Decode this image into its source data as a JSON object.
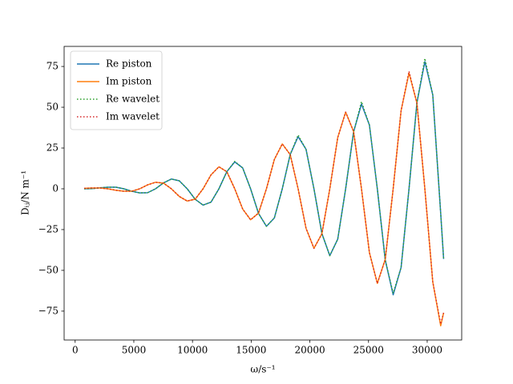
{
  "chart_data": {
    "type": "line",
    "xlabel": "ω/s⁻¹",
    "ylabel": "Dᵢⱼ/N m⁻¹",
    "x": [
      775,
      1450,
      2125,
      2800,
      3475,
      4150,
      4825,
      5500,
      6175,
      6850,
      7525,
      8200,
      8875,
      9550,
      10225,
      10900,
      11575,
      12250,
      12925,
      13600,
      14275,
      14950,
      15625,
      16300,
      16975,
      17650,
      18325,
      19000,
      19675,
      20350,
      21025,
      21700,
      22375,
      23050,
      23725,
      24400,
      25075,
      25750,
      26425,
      27100,
      27775,
      28450,
      29125,
      29800,
      30475,
      31150,
      31400
    ],
    "series": [
      {
        "name": "Re piston",
        "color": "#1f77b4",
        "linestyle": "solid",
        "values": [
          0,
          0.1,
          0.6,
          1,
          1,
          0,
          -1.5,
          -2.5,
          -2.4,
          0,
          3.6,
          6,
          4.9,
          0,
          -6.4,
          -10,
          -8.2,
          0,
          10.5,
          16.5,
          12.8,
          0,
          -15.1,
          -23,
          -17.9,
          0,
          21,
          32,
          24.2,
          0,
          -27.4,
          -41,
          -30.9,
          0,
          34.8,
          52,
          39.1,
          0,
          -43.7,
          -65,
          -48.3,
          0,
          52.8,
          78,
          57.6,
          -15,
          -43
        ]
      },
      {
        "name": "Im piston",
        "color": "#ff7f0e",
        "linestyle": "solid",
        "values": [
          0.3,
          0.5,
          0.5,
          0,
          -0.9,
          -1.5,
          -1.5,
          0,
          2.4,
          4,
          3.5,
          0,
          -4.7,
          -7.5,
          -6.4,
          0,
          8.5,
          13.5,
          10.5,
          0,
          -12.4,
          -19,
          -14.9,
          0,
          18,
          27.5,
          21,
          0,
          -24.2,
          -36.5,
          -27.6,
          0,
          31.4,
          47,
          35.2,
          0,
          -39.1,
          -58,
          -43.3,
          0,
          47.9,
          71,
          52.5,
          0,
          -57.1,
          -84,
          -76
        ]
      },
      {
        "name": "Re wavelet",
        "color": "#2ca02c",
        "linestyle": "dotted",
        "values": [
          0,
          0.1,
          0.6,
          1,
          1,
          0,
          -1.5,
          -2.5,
          -2.4,
          0,
          3.6,
          6,
          4.9,
          0,
          -6.4,
          -10,
          -8.2,
          0,
          10.5,
          16.8,
          12.8,
          0,
          -15.1,
          -23,
          -17.9,
          0,
          21,
          33,
          24.2,
          0,
          -27.4,
          -41,
          -30.9,
          0,
          34.8,
          53.5,
          39.1,
          0,
          -43.7,
          -64,
          -48.3,
          0,
          52.8,
          80,
          57.6,
          -15,
          -43
        ]
      },
      {
        "name": "Im wavelet",
        "color": "#d62728",
        "linestyle": "dotted",
        "values": [
          0.3,
          0.5,
          0.5,
          0,
          -0.9,
          -1.5,
          -1.5,
          0,
          2.4,
          4,
          3.5,
          0,
          -4.7,
          -7.5,
          -6.4,
          0,
          8.5,
          13.5,
          10.5,
          0,
          -12.4,
          -19,
          -14.9,
          0,
          18,
          27.5,
          21,
          0,
          -24.2,
          -36.5,
          -27.6,
          0,
          31.4,
          47,
          35.2,
          0,
          -39.1,
          -58,
          -43.3,
          0,
          47.9,
          72,
          52.5,
          0,
          -57.1,
          -83,
          -76
        ]
      }
    ],
    "xlim": [
      -940,
      32940
    ],
    "ylim": [
      -92.7,
      87.3
    ],
    "xticks": [
      0,
      5000,
      10000,
      15000,
      20000,
      25000,
      30000
    ],
    "yticks": [
      {
        "value": -75,
        "label": "−75"
      },
      {
        "value": -50,
        "label": "−50"
      },
      {
        "value": -25,
        "label": "−25"
      },
      0,
      25,
      50,
      75
    ],
    "grid": false,
    "legend": "upper left"
  }
}
